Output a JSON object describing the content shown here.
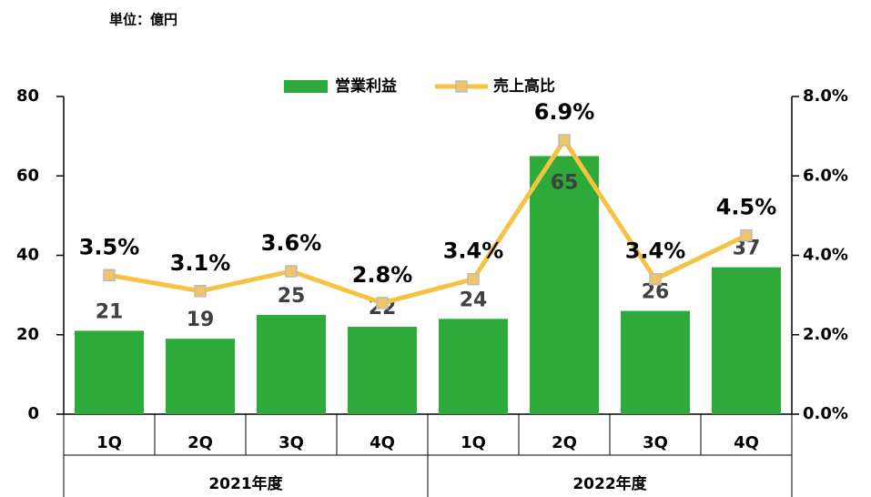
{
  "chart_data": {
    "type": "bar_line",
    "unit_note": "単位：億円",
    "categories": [
      "1Q",
      "2Q",
      "3Q",
      "4Q",
      "1Q",
      "2Q",
      "3Q",
      "4Q"
    ],
    "groups": [
      "2021年度",
      "2022年度"
    ],
    "series": [
      {
        "name": "営業利益",
        "type": "bar",
        "color": "#2eaa3a",
        "values": [
          21,
          19,
          25,
          22,
          24,
          65,
          26,
          37
        ]
      },
      {
        "name": "売上高比",
        "type": "line",
        "axis": "y2",
        "color": "#f5c242",
        "values": [
          3.5,
          3.1,
          3.6,
          2.8,
          3.4,
          6.9,
          3.4,
          4.5
        ],
        "value_labels": [
          "3.5%",
          "3.1%",
          "3.6%",
          "2.8%",
          "3.4%",
          "6.9%",
          "3.4%",
          "4.5%"
        ]
      }
    ],
    "ylim": [
      0,
      80
    ],
    "yticks": [
      0,
      20,
      40,
      60,
      80
    ],
    "y2lim": [
      0,
      8
    ],
    "y2ticks": [
      {
        "value": 0,
        "label": "0.0%"
      },
      {
        "value": 2,
        "label": "2.0%"
      },
      {
        "value": 4,
        "label": "4.0%"
      },
      {
        "value": 6,
        "label": "6.0%"
      },
      {
        "value": 8,
        "label": "8.0%"
      }
    ]
  }
}
